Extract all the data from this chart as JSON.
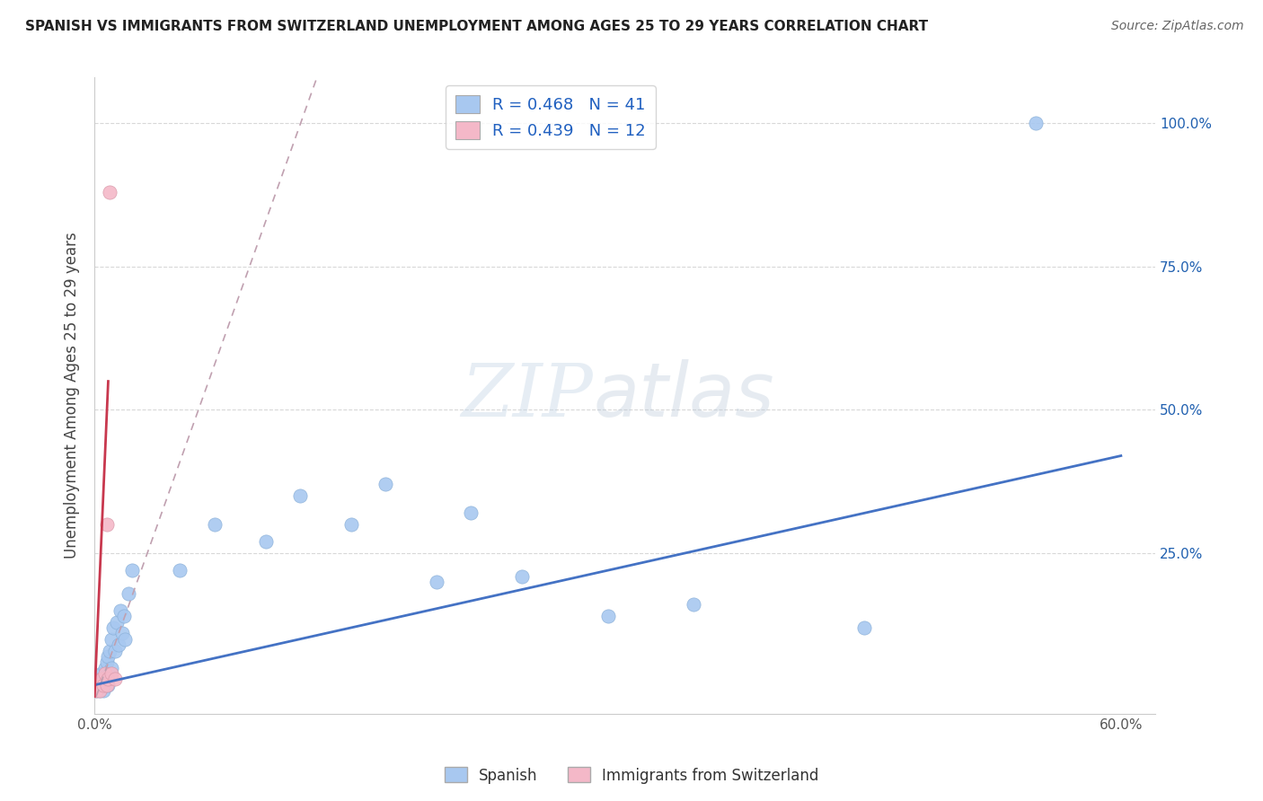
{
  "title": "SPANISH VS IMMIGRANTS FROM SWITZERLAND UNEMPLOYMENT AMONG AGES 25 TO 29 YEARS CORRELATION CHART",
  "source": "Source: ZipAtlas.com",
  "ylabel": "Unemployment Among Ages 25 to 29 years",
  "xlim": [
    0.0,
    0.62
  ],
  "ylim": [
    -0.03,
    1.08
  ],
  "xtick_positions": [
    0.0,
    0.1,
    0.2,
    0.3,
    0.4,
    0.5,
    0.6
  ],
  "xtick_labels": [
    "0.0%",
    "",
    "",
    "",
    "",
    "",
    "60.0%"
  ],
  "ytick_positions": [
    0.0,
    0.25,
    0.5,
    0.75,
    1.0
  ],
  "ytick_labels_right": [
    "",
    "25.0%",
    "50.0%",
    "75.0%",
    "100.0%"
  ],
  "spanish_color": "#a8c8f0",
  "swiss_color": "#f4b8c8",
  "regression_blue": "#4472c4",
  "regression_pink": "#c8384e",
  "regression_pink_dash": "#c0a0b0",
  "legend_color": "#2060c0",
  "legend_R_blue": "0.468",
  "legend_N_blue": "41",
  "legend_R_pink": "0.439",
  "legend_N_pink": "12",
  "watermark_zip": "ZIP",
  "watermark_atlas": "atlas",
  "background_color": "#ffffff",
  "grid_color": "#d8d8d8",
  "spanish_x": [
    0.001,
    0.002,
    0.003,
    0.003,
    0.004,
    0.004,
    0.005,
    0.005,
    0.006,
    0.006,
    0.007,
    0.007,
    0.008,
    0.008,
    0.009,
    0.009,
    0.01,
    0.01,
    0.011,
    0.012,
    0.013,
    0.014,
    0.015,
    0.016,
    0.017,
    0.018,
    0.02,
    0.022,
    0.05,
    0.07,
    0.1,
    0.12,
    0.15,
    0.17,
    0.2,
    0.22,
    0.25,
    0.3,
    0.35,
    0.45,
    0.55
  ],
  "spanish_y": [
    0.01,
    0.02,
    0.01,
    0.03,
    0.02,
    0.04,
    0.01,
    0.03,
    0.02,
    0.05,
    0.03,
    0.06,
    0.02,
    0.07,
    0.04,
    0.08,
    0.05,
    0.1,
    0.12,
    0.08,
    0.13,
    0.09,
    0.15,
    0.11,
    0.14,
    0.1,
    0.18,
    0.22,
    0.22,
    0.3,
    0.27,
    0.35,
    0.3,
    0.37,
    0.2,
    0.32,
    0.21,
    0.14,
    0.16,
    0.12,
    1.0
  ],
  "swiss_x": [
    0.001,
    0.002,
    0.003,
    0.004,
    0.005,
    0.006,
    0.007,
    0.007,
    0.008,
    0.009,
    0.01,
    0.012
  ],
  "swiss_y": [
    0.01,
    0.02,
    0.01,
    0.03,
    0.02,
    0.04,
    0.02,
    0.3,
    0.03,
    0.88,
    0.04,
    0.03
  ],
  "blue_line_x0": 0.0,
  "blue_line_y0": 0.02,
  "blue_line_x1": 0.6,
  "blue_line_y1": 0.42,
  "pink_line_solid_x0": 0.0,
  "pink_line_solid_y0": 0.0,
  "pink_line_solid_x1": 0.008,
  "pink_line_solid_y1": 0.55,
  "pink_line_dash_x0": 0.001,
  "pink_line_dash_y0": 0.0,
  "pink_line_dash_x1": 0.13,
  "pink_line_dash_y1": 1.08
}
